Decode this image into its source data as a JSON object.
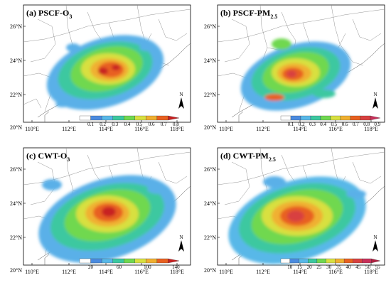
{
  "figure": {
    "panels": [
      {
        "id": "a",
        "title_main": "(a) PSCF-O",
        "title_sub": "3",
        "x_ticks": [
          "110°E",
          "112°E",
          "114°E",
          "116°E",
          "118°E"
        ],
        "y_ticks": [
          "26°N",
          "24°N",
          "22°N",
          "20°N"
        ],
        "colorbar": {
          "labels": [
            "0.1",
            "0.2",
            "0.3",
            "0.4",
            "0.5",
            "0.6",
            "0.7",
            "0.8"
          ],
          "colors": [
            "#ffffff",
            "#4a8be0",
            "#58b8e8",
            "#3cc8a0",
            "#70d850",
            "#d8e040",
            "#f0b030",
            "#e86020",
            "#c82020"
          ]
        },
        "north_label": "N"
      },
      {
        "id": "b",
        "title_main": "(b) PSCF-PM",
        "title_sub": "2.5",
        "x_ticks": [
          "110°E",
          "112°E",
          "114°E",
          "116°E",
          "118°E"
        ],
        "y_ticks": [
          "26°N",
          "24°N",
          "22°N",
          "20°N"
        ],
        "colorbar": {
          "labels": [
            "0.1",
            "0.2",
            "0.3",
            "0.4",
            "0.5",
            "0.6",
            "0.7",
            "0.8",
            "0.9"
          ],
          "colors": [
            "#ffffff",
            "#4a8be0",
            "#58b8e8",
            "#3cc8a0",
            "#70d850",
            "#d8e040",
            "#f0b030",
            "#e86020",
            "#d84040",
            "#c8305a"
          ]
        },
        "north_label": "N"
      },
      {
        "id": "c",
        "title_main": "(c) CWT-O",
        "title_sub": "3",
        "x_ticks": [
          "110°E",
          "112°E",
          "114°E",
          "116°E",
          "118°E"
        ],
        "y_ticks": [
          "26°N",
          "24°N",
          "22°N",
          "20°N"
        ],
        "colorbar": {
          "labels": [
            "20",
            "60",
            "100",
            "140"
          ],
          "colors": [
            "#ffffff",
            "#4a8be0",
            "#58b8e8",
            "#3cc8a0",
            "#70d850",
            "#d8e040",
            "#f0b030",
            "#e86020",
            "#c82020"
          ]
        },
        "north_label": "N"
      },
      {
        "id": "d",
        "title_main": "(d) CWT-PM",
        "title_sub": "2.5",
        "x_ticks": [
          "110°E",
          "112°E",
          "114°E",
          "116°E",
          "118°E"
        ],
        "y_ticks": [
          "26°N",
          "24°N",
          "22°N",
          "20°N"
        ],
        "colorbar": {
          "labels": [
            "10",
            "15",
            "20",
            "25",
            "30",
            "35",
            "40",
            "45",
            "50",
            "55"
          ],
          "colors": [
            "#ffffff",
            "#4a8be0",
            "#58b8e8",
            "#3cc8a0",
            "#70d850",
            "#d8e040",
            "#f0b030",
            "#e86020",
            "#d84040",
            "#c8305a",
            "#b02040"
          ]
        },
        "north_label": "N"
      }
    ]
  }
}
